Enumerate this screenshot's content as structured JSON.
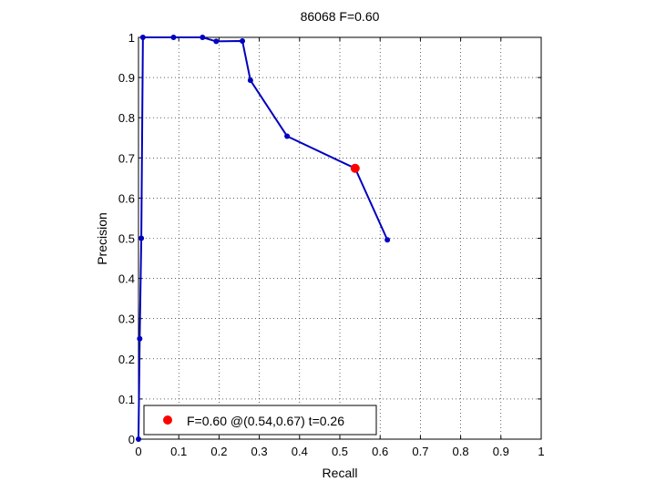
{
  "chart_data": {
    "type": "line",
    "title": "86068 F=0.60",
    "xlabel": "Recall",
    "ylabel": "Precision",
    "xlim": [
      0,
      1
    ],
    "ylim": [
      0,
      1
    ],
    "grid": true,
    "xticks": [
      "0",
      "0.1",
      "0.2",
      "0.3",
      "0.4",
      "0.5",
      "0.6",
      "0.7",
      "0.8",
      "0.9",
      "1"
    ],
    "yticks": [
      "0",
      "0.1",
      "0.2",
      "0.3",
      "0.4",
      "0.5",
      "0.6",
      "0.7",
      "0.8",
      "0.9",
      "1"
    ],
    "series": [
      {
        "color": "#0000c0",
        "x": [
          0.0,
          0.003,
          0.007,
          0.011,
          0.087,
          0.159,
          0.193,
          0.258,
          0.278,
          0.369,
          0.538,
          0.618
        ],
        "y": [
          0.0,
          0.25,
          0.5,
          1.0,
          1.0,
          1.0,
          0.99,
          0.991,
          0.893,
          0.754,
          0.674,
          0.496
        ]
      }
    ],
    "highlight": {
      "x": 0.538,
      "y": 0.674,
      "color": "#ff0000",
      "label": "F=0.60 @(0.54,0.67) t=0.26"
    },
    "legend_position": "bottom-left"
  }
}
